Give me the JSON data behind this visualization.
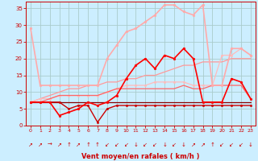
{
  "xlabel": "Vent moyen/en rafales ( km/h )",
  "background_color": "#cceeff",
  "grid_color": "#aacccc",
  "x_values": [
    0,
    1,
    2,
    3,
    4,
    5,
    6,
    7,
    8,
    9,
    10,
    11,
    12,
    13,
    14,
    15,
    16,
    17,
    18,
    19,
    20,
    21,
    22,
    23
  ],
  "series": [
    {
      "y": [
        7,
        7,
        7,
        7,
        7,
        7,
        7,
        7,
        7,
        7,
        7,
        7,
        7,
        7,
        7,
        7,
        7,
        7,
        7,
        7,
        7,
        7,
        7,
        7
      ],
      "color": "#880000",
      "linewidth": 0.9,
      "marker": null,
      "zorder": 4
    },
    {
      "y": [
        7,
        7,
        7,
        7,
        5,
        6,
        6,
        1,
        5,
        6,
        6,
        6,
        6,
        6,
        6,
        6,
        6,
        6,
        6,
        6,
        6,
        6,
        6,
        6
      ],
      "color": "#cc0000",
      "linewidth": 1.0,
      "marker": "o",
      "markersize": 1.8,
      "zorder": 5
    },
    {
      "y": [
        7,
        7,
        7,
        3,
        4,
        5,
        7,
        6,
        7,
        9,
        14,
        18,
        20,
        17,
        21,
        20,
        23,
        20,
        7,
        7,
        7,
        14,
        13,
        8
      ],
      "color": "#ff0000",
      "linewidth": 1.2,
      "marker": "o",
      "markersize": 2.0,
      "zorder": 6
    },
    {
      "y": [
        7,
        7,
        8,
        9,
        9,
        9,
        9,
        9,
        10,
        11,
        11,
        11,
        11,
        11,
        11,
        11,
        12,
        11,
        11,
        12,
        12,
        12,
        12,
        8
      ],
      "color": "#ff6666",
      "linewidth": 0.9,
      "marker": null,
      "zorder": 3
    },
    {
      "y": [
        7,
        8,
        9,
        10,
        11,
        11,
        12,
        12,
        13,
        13,
        14,
        14,
        15,
        15,
        16,
        17,
        18,
        18,
        19,
        19,
        19,
        20,
        20,
        20
      ],
      "color": "#ff9999",
      "linewidth": 0.9,
      "marker": null,
      "zorder": 2
    },
    {
      "y": [
        29,
        12,
        12,
        12,
        12,
        12,
        12,
        12,
        20,
        24,
        28,
        29,
        31,
        33,
        36,
        36,
        34,
        33,
        36,
        12,
        12,
        23,
        23,
        21
      ],
      "color": "#ffaaaa",
      "linewidth": 1.2,
      "marker": "o",
      "markersize": 2.0,
      "zorder": 3
    },
    {
      "y": [
        7,
        8,
        8,
        9,
        9,
        9,
        9,
        9,
        10,
        11,
        12,
        12,
        12,
        13,
        13,
        13,
        13,
        12,
        12,
        12,
        21,
        21,
        23,
        21
      ],
      "color": "#ffbbbb",
      "linewidth": 0.9,
      "marker": "o",
      "markersize": 1.8,
      "zorder": 2
    }
  ],
  "ylim": [
    0,
    37
  ],
  "yticks": [
    0,
    5,
    10,
    15,
    20,
    25,
    30,
    35
  ],
  "xlim": [
    -0.5,
    23.5
  ],
  "xticks": [
    0,
    1,
    2,
    3,
    4,
    5,
    6,
    7,
    8,
    9,
    10,
    11,
    12,
    13,
    14,
    15,
    16,
    17,
    18,
    19,
    20,
    21,
    22,
    23
  ],
  "tick_color": "#cc0000",
  "label_color": "#cc0000",
  "arrow_labels": [
    "↗",
    "↗",
    "→",
    "↗",
    "↑",
    "↗",
    "↑",
    "↑",
    "↙",
    "↙",
    "↙",
    "↓",
    "↙",
    "↙",
    "↓",
    "↙",
    "↓",
    "↗",
    "↗",
    "↑",
    "↙",
    "↙",
    "↙",
    "↓"
  ]
}
